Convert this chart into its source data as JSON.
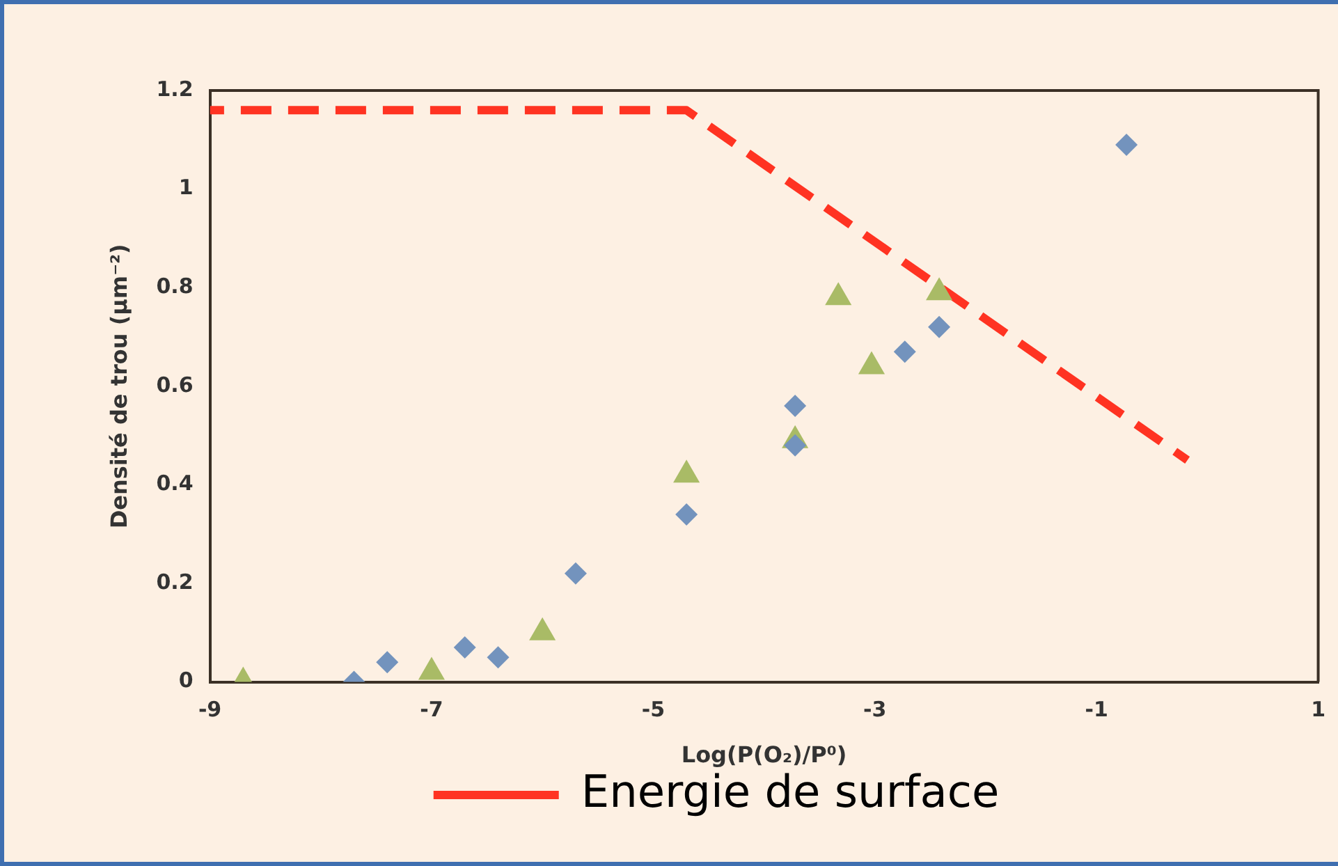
{
  "chart_data": {
    "type": "scatter",
    "xlabel": "Log(P(O₂)/P⁰)",
    "ylabel": "Densité de trou (µm⁻²)",
    "xlim": [
      -9,
      1
    ],
    "xticks": [
      -9,
      -7,
      -5,
      -3,
      -1,
      1
    ],
    "ylim": [
      0,
      1.2
    ],
    "yticks": [
      0,
      0.2,
      0.4,
      0.6,
      0.8,
      1,
      1.2
    ],
    "grid": false,
    "legend": "bottom",
    "series": [
      {
        "type": "scatter",
        "marker": "diamond",
        "color": "#7393bd",
        "x": [
          -7.7,
          -7.4,
          -6.7,
          -6.4,
          -5.7,
          -4.7,
          -3.72,
          -3.72,
          -2.73,
          -2.42,
          -0.73
        ],
        "values": [
          0,
          0.04,
          0.07,
          0.05,
          0.22,
          0.34,
          0.56,
          0.48,
          0.67,
          0.72,
          1.09
        ]
      },
      {
        "type": "scatter",
        "marker": "triangle",
        "color": "#a9bb66",
        "x": [
          -8.7,
          -7,
          -6,
          -4.7,
          -3.72,
          -3.33,
          -3.03,
          -2.42
        ],
        "values": [
          0,
          0.02,
          0.1,
          0.42,
          0.49,
          0.78,
          0.64,
          0.79
        ]
      },
      {
        "type": "line",
        "name": "Energie de surface",
        "marker": "none",
        "line_style": "dashed",
        "color": "#ff3322",
        "x": [
          -9,
          -4.7,
          -0.18
        ],
        "values": [
          1.16,
          1.16,
          0.45
        ]
      }
    ]
  }
}
